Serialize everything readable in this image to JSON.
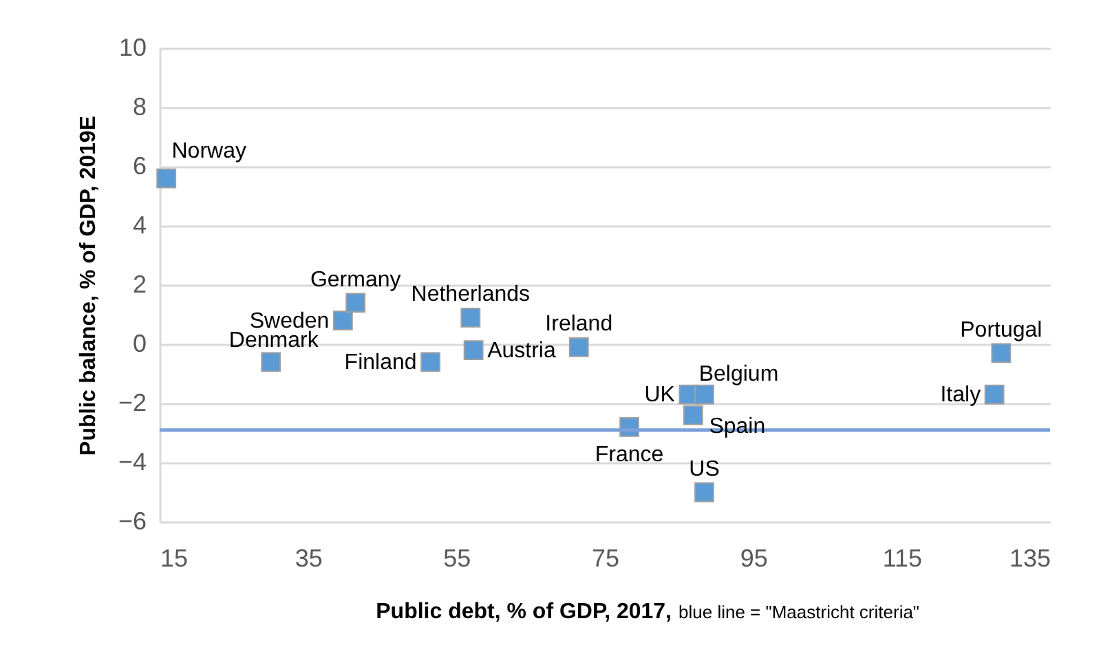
{
  "chart_data": {
    "type": "scatter",
    "xlabel": "Public debt, % of GDP, 2017,",
    "ylabel": "Public balance, % of GDP, 2019E",
    "annotations": [
      "blue line = \"Maastricht criteria\""
    ],
    "xlim": [
      15,
      135
    ],
    "xticks": [
      15,
      35,
      55,
      75,
      95,
      115,
      135
    ],
    "ylim": [
      -6,
      10
    ],
    "yticks": [
      -6,
      -4,
      -2,
      0,
      2,
      4,
      6,
      8,
      10
    ],
    "grid": "y",
    "legend": false,
    "marker": "square",
    "ref_lines": [
      {
        "axis": "y",
        "value": -2.9,
        "color": "#7b9fdb"
      }
    ],
    "series": [
      {
        "name": "Norway",
        "color": "#5b9bd5",
        "x": [
          15.9
        ],
        "values": [
          5.6
        ]
      },
      {
        "name": "Denmark",
        "color": "#5b9bd5",
        "x": [
          30
        ],
        "values": [
          -0.6
        ]
      },
      {
        "name": "Sweden",
        "color": "#5b9bd5",
        "x": [
          39.7
        ],
        "values": [
          0.8
        ]
      },
      {
        "name": "Germany",
        "color": "#5b9bd5",
        "x": [
          41.4
        ],
        "values": [
          1.4
        ]
      },
      {
        "name": "Finland",
        "color": "#5b9bd5",
        "x": [
          51.5
        ],
        "values": [
          -0.6
        ]
      },
      {
        "name": "Netherlands",
        "color": "#5b9bd5",
        "x": [
          56.9
        ],
        "values": [
          0.9
        ]
      },
      {
        "name": "Austria",
        "color": "#5b9bd5",
        "x": [
          57.3
        ],
        "values": [
          -0.2
        ]
      },
      {
        "name": "Ireland",
        "color": "#5b9bd5",
        "x": [
          71.5
        ],
        "values": [
          -0.1
        ]
      },
      {
        "name": "France",
        "color": "#5b9bd5",
        "x": [
          78.3
        ],
        "values": [
          -2.8
        ]
      },
      {
        "name": "UK",
        "color": "#5b9bd5",
        "x": [
          86.3
        ],
        "values": [
          -1.7
        ]
      },
      {
        "name": "Belgium",
        "color": "#5b9bd5",
        "x": [
          88.4
        ],
        "values": [
          -1.7
        ]
      },
      {
        "name": "Spain",
        "color": "#5b9bd5",
        "x": [
          86.9
        ],
        "values": [
          -2.4
        ]
      },
      {
        "name": "US",
        "color": "#5b9bd5",
        "x": [
          88.4
        ],
        "values": [
          -5
        ]
      },
      {
        "name": "Portugal",
        "color": "#5b9bd5",
        "x": [
          128.4
        ],
        "values": [
          -0.3
        ]
      },
      {
        "name": "Italy",
        "color": "#5b9bd5",
        "x": [
          127.5
        ],
        "values": [
          -1.7
        ]
      }
    ]
  }
}
